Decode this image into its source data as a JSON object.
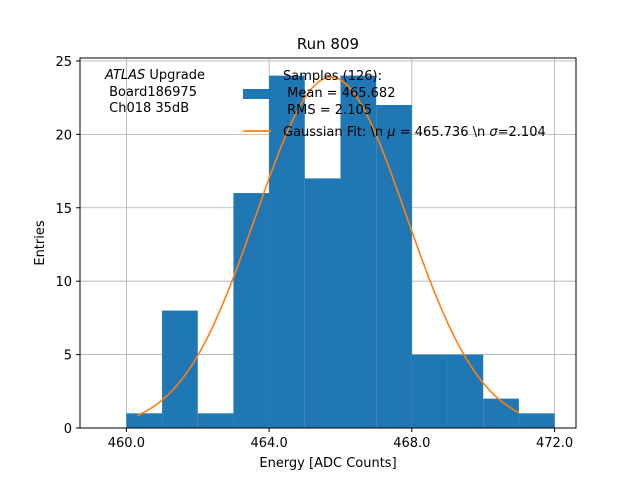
{
  "chart_data": {
    "type": "bar",
    "title": "Run 809",
    "xlabel": "Energy [ADC Counts]",
    "ylabel": "Entries",
    "xlim": [
      458.7,
      472.6
    ],
    "ylim": [
      0,
      25.2
    ],
    "xticks": [
      460.0,
      464.0,
      468.0,
      472.0
    ],
    "xtick_labels": [
      "460.0",
      "464.0",
      "468.0",
      "472.0"
    ],
    "yticks": [
      0,
      5,
      10,
      15,
      20,
      25
    ],
    "ytick_labels": [
      "0",
      "5",
      "10",
      "15",
      "20",
      "25"
    ],
    "grid": true,
    "bar_color": "#1f77b4",
    "fit_color": "#ff7f0e",
    "bins": [
      {
        "lo": 460,
        "hi": 461,
        "count": 1
      },
      {
        "lo": 461,
        "hi": 462,
        "count": 8
      },
      {
        "lo": 462,
        "hi": 463,
        "count": 1
      },
      {
        "lo": 463,
        "hi": 464,
        "count": 16
      },
      {
        "lo": 464,
        "hi": 465,
        "count": 24
      },
      {
        "lo": 465,
        "hi": 466,
        "count": 17
      },
      {
        "lo": 466,
        "hi": 467,
        "count": 24
      },
      {
        "lo": 467,
        "hi": 468,
        "count": 22
      },
      {
        "lo": 468,
        "hi": 469,
        "count": 5
      },
      {
        "lo": 469,
        "hi": 470,
        "count": 5
      },
      {
        "lo": 470,
        "hi": 471,
        "count": 2
      },
      {
        "lo": 471,
        "hi": 472,
        "count": 1
      }
    ],
    "fit": {
      "amplitude": 23.9,
      "mu": 465.736,
      "sigma": 2.104,
      "x_range": [
        460.3,
        471.0
      ]
    },
    "annotation": {
      "italic": "ATLAS",
      "line1_rest": " Upgrade",
      "line2": " Board186975",
      "line3": " Ch018 35dB"
    },
    "legend": {
      "position": "top-right",
      "hist_line1": "Samples (126):",
      "hist_line2": " Mean = 465.682",
      "hist_line3": " RMS = 2.105",
      "fit_prefix": "Gaussian Fit: \\n ",
      "fit_mu_sym": "μ",
      "fit_mid": " = 465.736 \\n ",
      "fit_sigma_sym": "σ",
      "fit_suffix": "=2.104"
    }
  }
}
